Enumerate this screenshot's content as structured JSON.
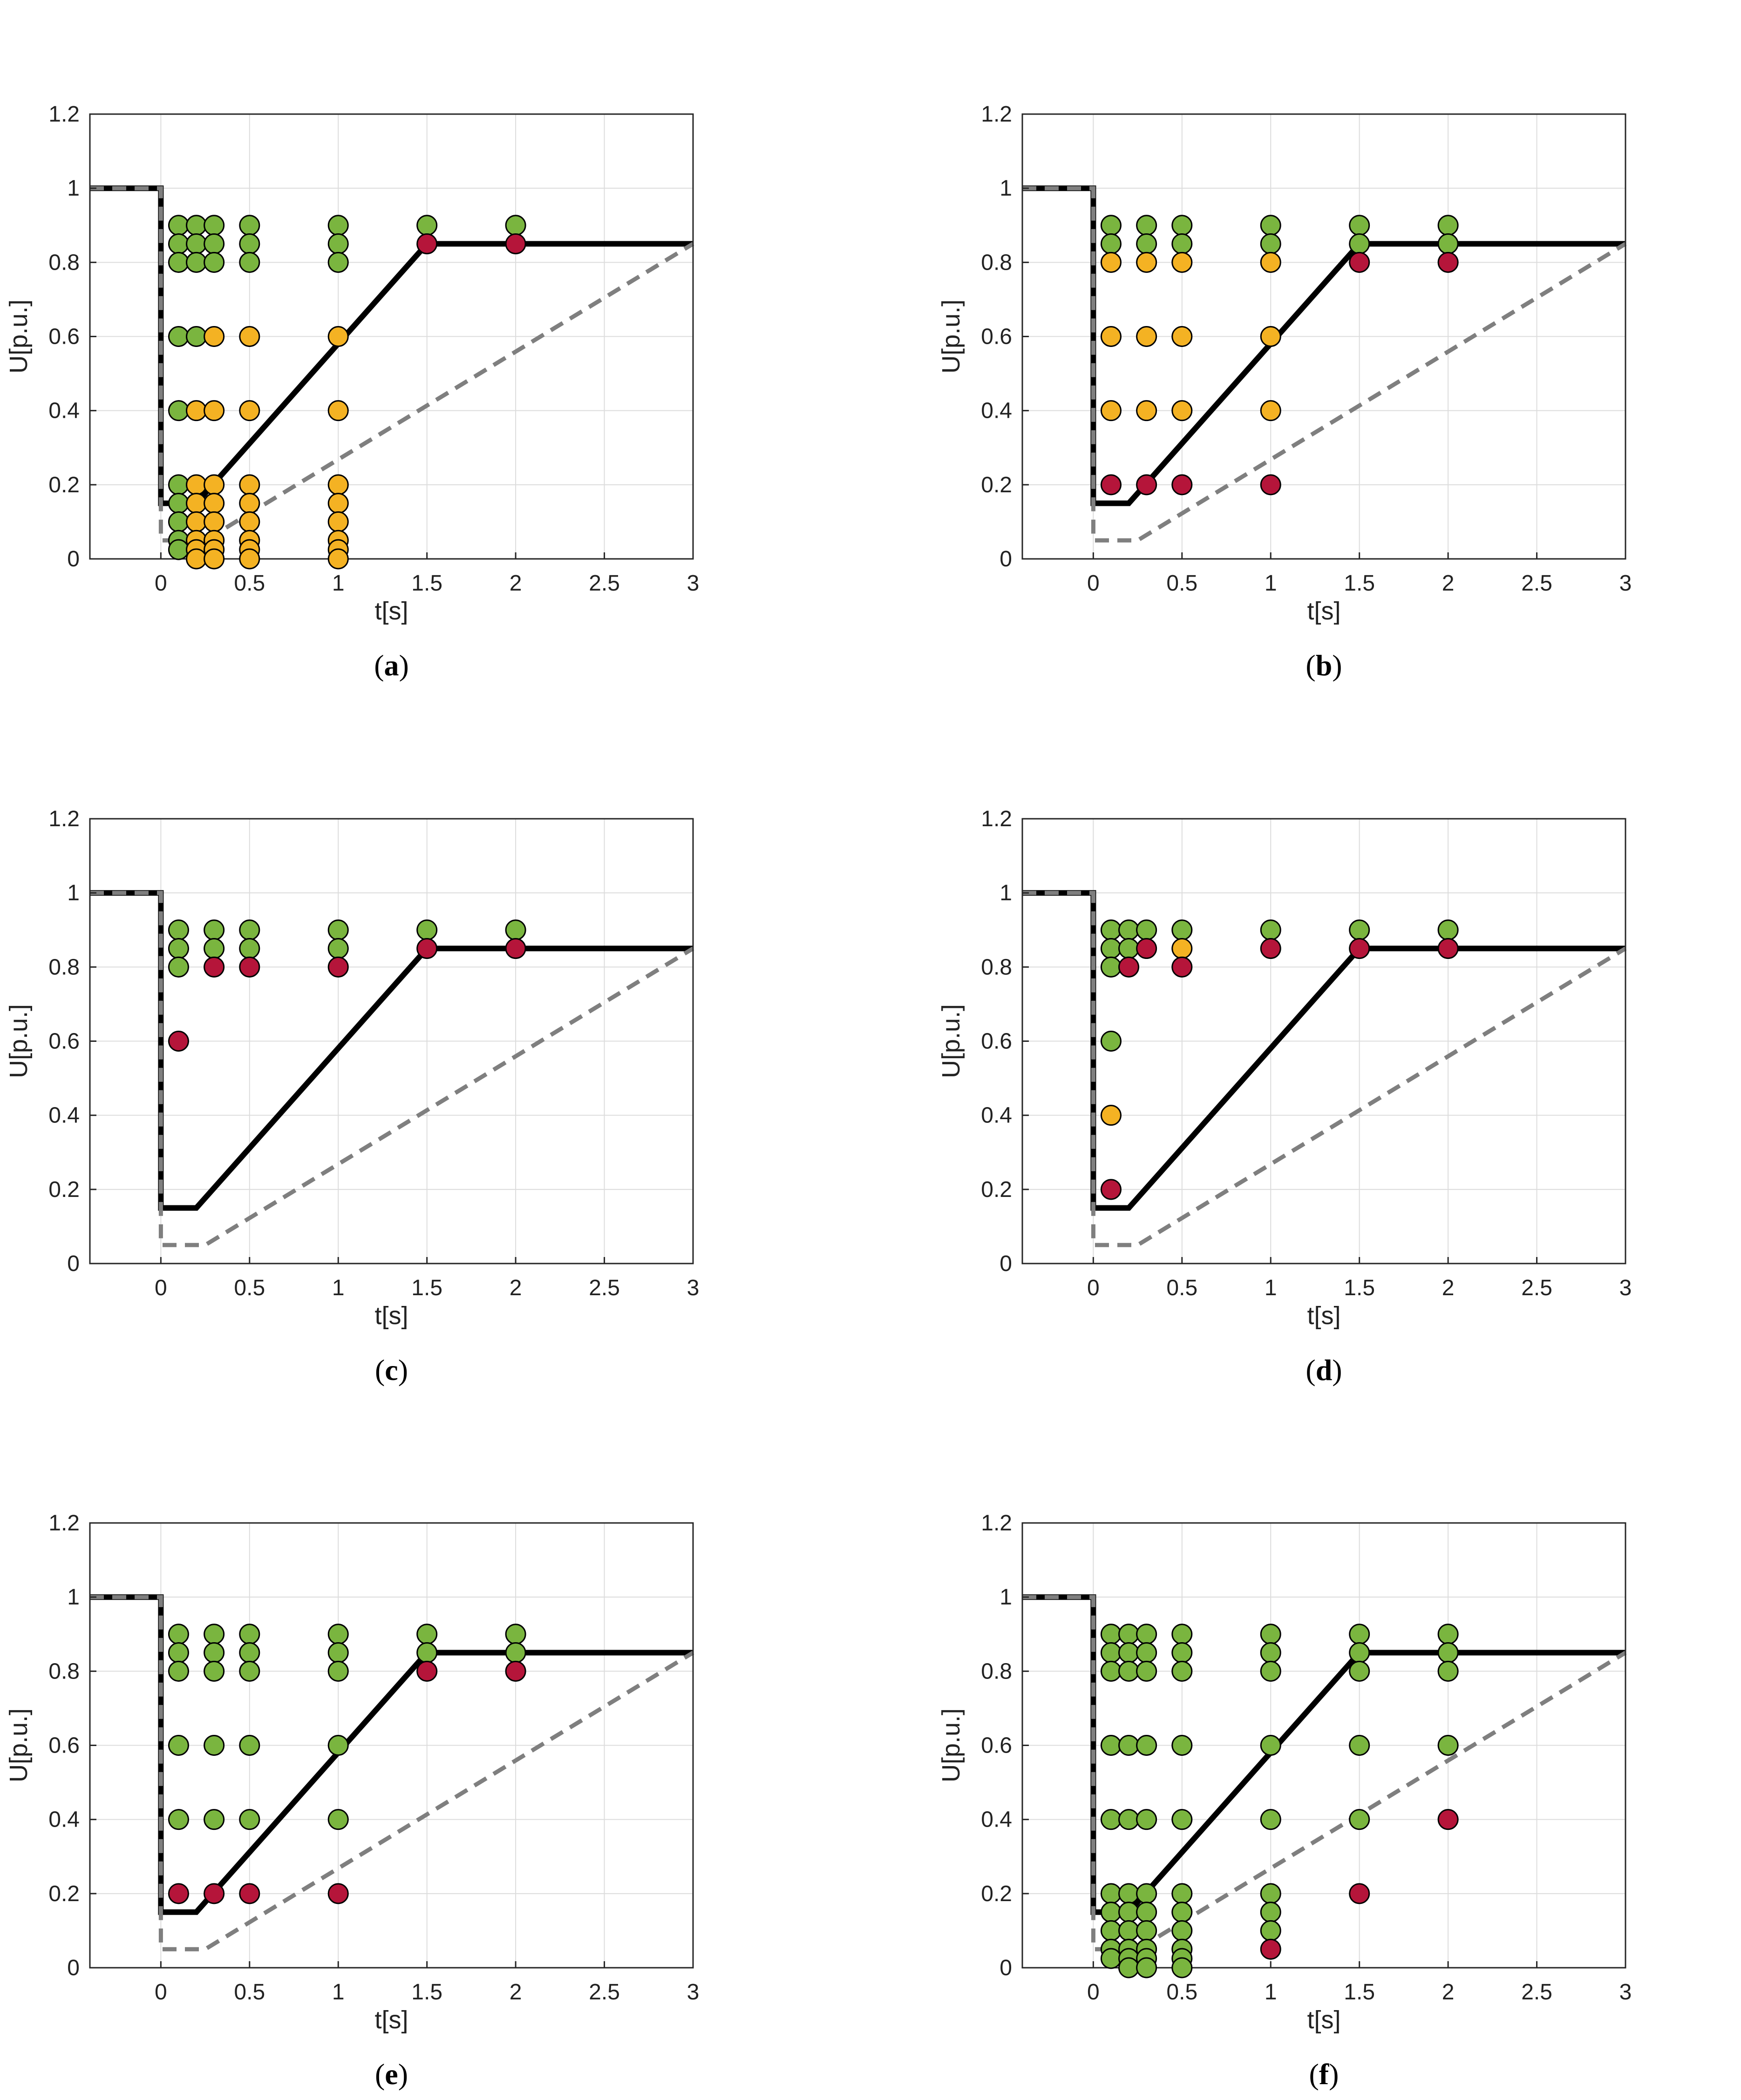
{
  "colors": {
    "green": "#7ab53f",
    "orange": "#f4b223",
    "red": "#b5153a",
    "limit_solid": "#000000",
    "limit_dashed": "#7f7f7f",
    "grid": "#dcdcdc"
  },
  "axes": {
    "xlabel": "t[s]",
    "ylabel": "U[p.u.]",
    "xlim": [
      -0.4,
      3
    ],
    "ylim": [
      0,
      1.2
    ],
    "xticks": [
      0,
      0.5,
      1,
      1.5,
      2,
      2.5,
      3
    ],
    "xtick_labels": [
      "0",
      "0.5",
      "1",
      "1.5",
      "2",
      "2.5",
      "3"
    ],
    "yticks": [
      0,
      0.2,
      0.4,
      0.6,
      0.8,
      1,
      1.2
    ],
    "ytick_labels": [
      "0",
      "0.2",
      "0.4",
      "0.6",
      "0.8",
      "1",
      "1.2"
    ]
  },
  "chart_data": [
    {
      "type": "scatter",
      "label": "(a)",
      "caption_letter": "a",
      "points": [
        [
          0.1,
          0.9,
          "g"
        ],
        [
          0.1,
          0.85,
          "g"
        ],
        [
          0.1,
          0.8,
          "g"
        ],
        [
          0.1,
          0.6,
          "g"
        ],
        [
          0.1,
          0.4,
          "g"
        ],
        [
          0.1,
          0.2,
          "g"
        ],
        [
          0.1,
          0.15,
          "g"
        ],
        [
          0.1,
          0.1,
          "g"
        ],
        [
          0.1,
          0.05,
          "g"
        ],
        [
          0.1,
          0.025,
          "g"
        ],
        [
          0.2,
          0.9,
          "g"
        ],
        [
          0.2,
          0.85,
          "g"
        ],
        [
          0.2,
          0.8,
          "g"
        ],
        [
          0.2,
          0.6,
          "g"
        ],
        [
          0.2,
          0.4,
          "o"
        ],
        [
          0.2,
          0.2,
          "o"
        ],
        [
          0.2,
          0.15,
          "o"
        ],
        [
          0.2,
          0.1,
          "o"
        ],
        [
          0.2,
          0.05,
          "o"
        ],
        [
          0.2,
          0.025,
          "o"
        ],
        [
          0.2,
          0.0,
          "o"
        ],
        [
          0.3,
          0.9,
          "g"
        ],
        [
          0.3,
          0.85,
          "g"
        ],
        [
          0.3,
          0.8,
          "g"
        ],
        [
          0.3,
          0.6,
          "o"
        ],
        [
          0.3,
          0.4,
          "o"
        ],
        [
          0.3,
          0.2,
          "o"
        ],
        [
          0.3,
          0.15,
          "o"
        ],
        [
          0.3,
          0.1,
          "o"
        ],
        [
          0.3,
          0.05,
          "o"
        ],
        [
          0.3,
          0.025,
          "o"
        ],
        [
          0.3,
          0.0,
          "o"
        ],
        [
          0.5,
          0.9,
          "g"
        ],
        [
          0.5,
          0.85,
          "g"
        ],
        [
          0.5,
          0.8,
          "g"
        ],
        [
          0.5,
          0.6,
          "o"
        ],
        [
          0.5,
          0.4,
          "o"
        ],
        [
          0.5,
          0.2,
          "o"
        ],
        [
          0.5,
          0.15,
          "o"
        ],
        [
          0.5,
          0.1,
          "o"
        ],
        [
          0.5,
          0.05,
          "o"
        ],
        [
          0.5,
          0.025,
          "o"
        ],
        [
          0.5,
          0.0,
          "o"
        ],
        [
          1,
          0.9,
          "g"
        ],
        [
          1,
          0.85,
          "g"
        ],
        [
          1,
          0.8,
          "g"
        ],
        [
          1,
          0.6,
          "o"
        ],
        [
          1,
          0.4,
          "o"
        ],
        [
          1,
          0.2,
          "o"
        ],
        [
          1,
          0.15,
          "o"
        ],
        [
          1,
          0.1,
          "o"
        ],
        [
          1,
          0.05,
          "o"
        ],
        [
          1,
          0.025,
          "o"
        ],
        [
          1,
          0.0,
          "o"
        ],
        [
          1.5,
          0.9,
          "g"
        ],
        [
          1.5,
          0.85,
          "r"
        ],
        [
          2,
          0.9,
          "g"
        ],
        [
          2,
          0.85,
          "r"
        ]
      ]
    },
    {
      "type": "scatter",
      "label": "(b)",
      "caption_letter": "b",
      "points": [
        [
          0.1,
          0.9,
          "g"
        ],
        [
          0.1,
          0.85,
          "g"
        ],
        [
          0.1,
          0.8,
          "o"
        ],
        [
          0.1,
          0.6,
          "o"
        ],
        [
          0.1,
          0.4,
          "o"
        ],
        [
          0.1,
          0.2,
          "r"
        ],
        [
          0.3,
          0.9,
          "g"
        ],
        [
          0.3,
          0.85,
          "g"
        ],
        [
          0.3,
          0.8,
          "o"
        ],
        [
          0.3,
          0.6,
          "o"
        ],
        [
          0.3,
          0.4,
          "o"
        ],
        [
          0.3,
          0.2,
          "r"
        ],
        [
          0.5,
          0.9,
          "g"
        ],
        [
          0.5,
          0.85,
          "g"
        ],
        [
          0.5,
          0.8,
          "o"
        ],
        [
          0.5,
          0.6,
          "o"
        ],
        [
          0.5,
          0.4,
          "o"
        ],
        [
          0.5,
          0.2,
          "r"
        ],
        [
          1,
          0.9,
          "g"
        ],
        [
          1,
          0.85,
          "g"
        ],
        [
          1,
          0.8,
          "o"
        ],
        [
          1,
          0.6,
          "o"
        ],
        [
          1,
          0.4,
          "o"
        ],
        [
          1,
          0.2,
          "r"
        ],
        [
          1.5,
          0.9,
          "g"
        ],
        [
          1.5,
          0.85,
          "g"
        ],
        [
          1.5,
          0.8,
          "r"
        ],
        [
          2,
          0.9,
          "g"
        ],
        [
          2,
          0.85,
          "g"
        ],
        [
          2,
          0.8,
          "r"
        ]
      ]
    },
    {
      "type": "scatter",
      "label": "(c)",
      "caption_letter": "c",
      "points": [
        [
          0.1,
          0.9,
          "g"
        ],
        [
          0.1,
          0.85,
          "g"
        ],
        [
          0.1,
          0.8,
          "g"
        ],
        [
          0.1,
          0.6,
          "r"
        ],
        [
          0.3,
          0.9,
          "g"
        ],
        [
          0.3,
          0.85,
          "g"
        ],
        [
          0.3,
          0.8,
          "r"
        ],
        [
          0.5,
          0.9,
          "g"
        ],
        [
          0.5,
          0.85,
          "g"
        ],
        [
          0.5,
          0.8,
          "r"
        ],
        [
          1,
          0.9,
          "g"
        ],
        [
          1,
          0.85,
          "g"
        ],
        [
          1,
          0.8,
          "r"
        ],
        [
          1.5,
          0.9,
          "g"
        ],
        [
          1.5,
          0.85,
          "r"
        ],
        [
          2,
          0.9,
          "g"
        ],
        [
          2,
          0.85,
          "r"
        ]
      ]
    },
    {
      "type": "scatter",
      "label": "(d)",
      "caption_letter": "d",
      "points": [
        [
          0.1,
          0.9,
          "g"
        ],
        [
          0.1,
          0.85,
          "g"
        ],
        [
          0.1,
          0.8,
          "g"
        ],
        [
          0.1,
          0.6,
          "g"
        ],
        [
          0.1,
          0.4,
          "o"
        ],
        [
          0.1,
          0.2,
          "r"
        ],
        [
          0.2,
          0.9,
          "g"
        ],
        [
          0.2,
          0.85,
          "g"
        ],
        [
          0.2,
          0.8,
          "r"
        ],
        [
          0.3,
          0.9,
          "g"
        ],
        [
          0.3,
          0.85,
          "r"
        ],
        [
          0.5,
          0.9,
          "g"
        ],
        [
          0.5,
          0.85,
          "o"
        ],
        [
          0.5,
          0.8,
          "r"
        ],
        [
          1,
          0.9,
          "g"
        ],
        [
          1,
          0.85,
          "r"
        ],
        [
          1.5,
          0.9,
          "g"
        ],
        [
          1.5,
          0.85,
          "r"
        ],
        [
          2,
          0.9,
          "g"
        ],
        [
          2,
          0.85,
          "r"
        ]
      ]
    },
    {
      "type": "scatter",
      "label": "(e)",
      "caption_letter": "e",
      "points": [
        [
          0.1,
          0.9,
          "g"
        ],
        [
          0.1,
          0.85,
          "g"
        ],
        [
          0.1,
          0.8,
          "g"
        ],
        [
          0.1,
          0.6,
          "g"
        ],
        [
          0.1,
          0.4,
          "g"
        ],
        [
          0.1,
          0.2,
          "r"
        ],
        [
          0.3,
          0.9,
          "g"
        ],
        [
          0.3,
          0.85,
          "g"
        ],
        [
          0.3,
          0.8,
          "g"
        ],
        [
          0.3,
          0.6,
          "g"
        ],
        [
          0.3,
          0.4,
          "g"
        ],
        [
          0.3,
          0.2,
          "r"
        ],
        [
          0.5,
          0.9,
          "g"
        ],
        [
          0.5,
          0.85,
          "g"
        ],
        [
          0.5,
          0.8,
          "g"
        ],
        [
          0.5,
          0.6,
          "g"
        ],
        [
          0.5,
          0.4,
          "g"
        ],
        [
          0.5,
          0.2,
          "r"
        ],
        [
          1,
          0.9,
          "g"
        ],
        [
          1,
          0.85,
          "g"
        ],
        [
          1,
          0.8,
          "g"
        ],
        [
          1,
          0.6,
          "g"
        ],
        [
          1,
          0.4,
          "g"
        ],
        [
          1,
          0.2,
          "r"
        ],
        [
          1.5,
          0.9,
          "g"
        ],
        [
          1.5,
          0.85,
          "g"
        ],
        [
          1.5,
          0.8,
          "r"
        ],
        [
          2,
          0.9,
          "g"
        ],
        [
          2,
          0.85,
          "g"
        ],
        [
          2,
          0.8,
          "r"
        ]
      ]
    },
    {
      "type": "scatter",
      "label": "(f)",
      "caption_letter": "f",
      "points": [
        [
          0.1,
          0.9,
          "g"
        ],
        [
          0.1,
          0.85,
          "g"
        ],
        [
          0.1,
          0.8,
          "g"
        ],
        [
          0.1,
          0.6,
          "g"
        ],
        [
          0.1,
          0.4,
          "g"
        ],
        [
          0.1,
          0.2,
          "g"
        ],
        [
          0.1,
          0.15,
          "g"
        ],
        [
          0.1,
          0.1,
          "g"
        ],
        [
          0.1,
          0.05,
          "g"
        ],
        [
          0.1,
          0.025,
          "g"
        ],
        [
          0.2,
          0.9,
          "g"
        ],
        [
          0.2,
          0.85,
          "g"
        ],
        [
          0.2,
          0.8,
          "g"
        ],
        [
          0.2,
          0.6,
          "g"
        ],
        [
          0.2,
          0.4,
          "g"
        ],
        [
          0.2,
          0.2,
          "g"
        ],
        [
          0.2,
          0.15,
          "g"
        ],
        [
          0.2,
          0.1,
          "g"
        ],
        [
          0.2,
          0.05,
          "g"
        ],
        [
          0.2,
          0.025,
          "g"
        ],
        [
          0.2,
          0.0,
          "g"
        ],
        [
          0.3,
          0.9,
          "g"
        ],
        [
          0.3,
          0.85,
          "g"
        ],
        [
          0.3,
          0.8,
          "g"
        ],
        [
          0.3,
          0.6,
          "g"
        ],
        [
          0.3,
          0.4,
          "g"
        ],
        [
          0.3,
          0.2,
          "g"
        ],
        [
          0.3,
          0.15,
          "g"
        ],
        [
          0.3,
          0.1,
          "g"
        ],
        [
          0.3,
          0.05,
          "g"
        ],
        [
          0.3,
          0.025,
          "g"
        ],
        [
          0.3,
          0.0,
          "g"
        ],
        [
          0.5,
          0.9,
          "g"
        ],
        [
          0.5,
          0.85,
          "g"
        ],
        [
          0.5,
          0.8,
          "g"
        ],
        [
          0.5,
          0.6,
          "g"
        ],
        [
          0.5,
          0.4,
          "g"
        ],
        [
          0.5,
          0.2,
          "g"
        ],
        [
          0.5,
          0.15,
          "g"
        ],
        [
          0.5,
          0.1,
          "g"
        ],
        [
          0.5,
          0.05,
          "g"
        ],
        [
          0.5,
          0.025,
          "g"
        ],
        [
          0.5,
          0.0,
          "g"
        ],
        [
          1,
          0.9,
          "g"
        ],
        [
          1,
          0.85,
          "g"
        ],
        [
          1,
          0.8,
          "g"
        ],
        [
          1,
          0.6,
          "g"
        ],
        [
          1,
          0.4,
          "g"
        ],
        [
          1,
          0.2,
          "g"
        ],
        [
          1,
          0.15,
          "g"
        ],
        [
          1,
          0.1,
          "g"
        ],
        [
          1,
          0.05,
          "r"
        ],
        [
          1.5,
          0.9,
          "g"
        ],
        [
          1.5,
          0.85,
          "g"
        ],
        [
          1.5,
          0.8,
          "g"
        ],
        [
          1.5,
          0.6,
          "g"
        ],
        [
          1.5,
          0.4,
          "g"
        ],
        [
          1.5,
          0.2,
          "r"
        ],
        [
          2,
          0.9,
          "g"
        ],
        [
          2,
          0.85,
          "g"
        ],
        [
          2,
          0.8,
          "g"
        ],
        [
          2,
          0.6,
          "g"
        ],
        [
          2,
          0.4,
          "r"
        ]
      ]
    }
  ],
  "limit_curves": {
    "solid": [
      [
        -0.4,
        1
      ],
      [
        0,
        1
      ],
      [
        0,
        0.15
      ],
      [
        0.2,
        0.15
      ],
      [
        1.5,
        0.85
      ],
      [
        3,
        0.85
      ]
    ],
    "dashed": [
      [
        -0.4,
        1
      ],
      [
        0,
        1
      ],
      [
        0,
        0.05
      ],
      [
        0.25,
        0.05
      ],
      [
        3,
        0.85
      ]
    ]
  }
}
